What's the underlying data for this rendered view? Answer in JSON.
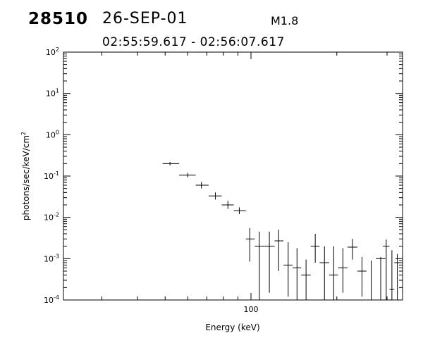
{
  "header": {
    "event_id": "28510",
    "date": "26-SEP-01",
    "flare_class": "M1.8",
    "time_range": "02:55:59.617 - 02:56:07.617"
  },
  "chart_data": {
    "type": "scatter",
    "xlabel": "Energy (keV)",
    "ylabel": "photons/sec/keV/cm",
    "ylabel_superscript": "2",
    "x_scale": "log",
    "y_scale": "log",
    "xlim": [
      22,
      340
    ],
    "ylim": [
      0.0001,
      100
    ],
    "x_tick_labels": [
      {
        "value": 100,
        "label": "100"
      }
    ],
    "y_tick_labels": [
      {
        "exp": -4,
        "base": "10"
      },
      {
        "exp": -3,
        "base": "10"
      },
      {
        "exp": -2,
        "base": "10"
      },
      {
        "exp": -1,
        "base": "10"
      },
      {
        "exp": 0,
        "base": "10"
      },
      {
        "exp": 1,
        "base": "10"
      },
      {
        "exp": 2,
        "base": "10"
      }
    ],
    "grid": false,
    "marker": "error-cross",
    "points": [
      {
        "x": 52,
        "xlo": 49,
        "xhi": 56,
        "y": 0.2,
        "ylo": 0.18,
        "yhi": 0.22
      },
      {
        "x": 60,
        "xlo": 56,
        "xhi": 64,
        "y": 0.105,
        "ylo": 0.093,
        "yhi": 0.118
      },
      {
        "x": 67,
        "xlo": 64,
        "xhi": 71,
        "y": 0.06,
        "ylo": 0.05,
        "yhi": 0.072
      },
      {
        "x": 75,
        "xlo": 71,
        "xhi": 79,
        "y": 0.033,
        "ylo": 0.027,
        "yhi": 0.04
      },
      {
        "x": 83,
        "xlo": 79,
        "xhi": 87,
        "y": 0.02,
        "ylo": 0.016,
        "yhi": 0.025
      },
      {
        "x": 91,
        "xlo": 87,
        "xhi": 96,
        "y": 0.0145,
        "ylo": 0.012,
        "yhi": 0.0175
      },
      {
        "x": 99,
        "xlo": 96,
        "xhi": 103,
        "y": 0.003,
        "ylo": 0.00085,
        "yhi": 0.0055
      },
      {
        "x": 107,
        "xlo": 103,
        "xhi": 112,
        "y": 0.002,
        "ylo": 0.0001,
        "yhi": 0.0045
      },
      {
        "x": 116,
        "xlo": 112,
        "xhi": 121,
        "y": 0.002,
        "ylo": 0.00015,
        "yhi": 0.0045
      },
      {
        "x": 125,
        "xlo": 121,
        "xhi": 130,
        "y": 0.0027,
        "ylo": 0.0005,
        "yhi": 0.005
      },
      {
        "x": 135,
        "xlo": 130,
        "xhi": 140,
        "y": 0.0007,
        "ylo": 0.00012,
        "yhi": 0.0025
      },
      {
        "x": 145,
        "xlo": 140,
        "xhi": 150,
        "y": 0.0006,
        "ylo": 0.0001,
        "yhi": 0.0018
      },
      {
        "x": 156,
        "xlo": 150,
        "xhi": 162,
        "y": 0.0004,
        "ylo": 0.0001,
        "yhi": 0.00095
      },
      {
        "x": 168,
        "xlo": 162,
        "xhi": 174,
        "y": 0.002,
        "ylo": 0.0008,
        "yhi": 0.004
      },
      {
        "x": 181,
        "xlo": 174,
        "xhi": 188,
        "y": 0.0008,
        "ylo": 0.0001,
        "yhi": 0.002
      },
      {
        "x": 195,
        "xlo": 188,
        "xhi": 202,
        "y": 0.0004,
        "ylo": 0.0001,
        "yhi": 0.002
      },
      {
        "x": 210,
        "xlo": 202,
        "xhi": 218,
        "y": 0.0006,
        "ylo": 0.00015,
        "yhi": 0.0018
      },
      {
        "x": 227,
        "xlo": 218,
        "xhi": 236,
        "y": 0.0019,
        "ylo": 0.00095,
        "yhi": 0.003
      },
      {
        "x": 245,
        "xlo": 236,
        "xhi": 254,
        "y": 0.0005,
        "ylo": 0.00012,
        "yhi": 0.0011
      },
      {
        "x": 264,
        "xlo": 254,
        "xhi": 274,
        "y": 0.0001,
        "ylo": 0.0001,
        "yhi": 0.0009
      },
      {
        "x": 285,
        "xlo": 274,
        "xhi": 296,
        "y": 0.001,
        "ylo": 0.0001,
        "yhi": 0.0011
      },
      {
        "x": 298,
        "xlo": 290,
        "xhi": 306,
        "y": 0.002,
        "ylo": 0.0001,
        "yhi": 0.0029
      },
      {
        "x": 312,
        "xlo": 306,
        "xhi": 318,
        "y": 0.00018,
        "ylo": 0.0001,
        "yhi": 0.0016
      },
      {
        "x": 326,
        "xlo": 318,
        "xhi": 334,
        "y": 0.0008,
        "ylo": 0.0001,
        "yhi": 0.0013
      }
    ]
  }
}
